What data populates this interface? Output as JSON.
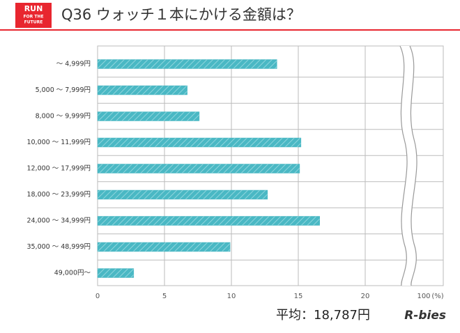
{
  "chart_data": {
    "type": "barh",
    "logo": [
      "RUN",
      "FOR THE",
      "FUTURE"
    ],
    "title": "Q36 ウォッチ１本にかける金額は？",
    "categories": [
      "～ 4,999円",
      "5,000 ～ 7,999円",
      "8,000 ～ 9,999円",
      "10,000 ～ 11,999円",
      "12,000 ～ 17,999円",
      "18,000 ～ 23,999円",
      "24,000 ～ 34,999円",
      "35,000 ～ 48,999円",
      "49,000円～"
    ],
    "values": [
      13.4,
      6.7,
      7.6,
      15.2,
      15.1,
      12.7,
      16.6,
      9.9,
      2.7
    ],
    "color": "#4ab8c4",
    "xlim": [
      0,
      100
    ],
    "axis_break": [
      22.5,
      98
    ],
    "xticks": [
      0,
      5,
      10,
      15,
      20,
      100
    ],
    "x_unit": "(%)",
    "grid": true,
    "note": "平均：18,787円",
    "brand": "R-bies"
  }
}
